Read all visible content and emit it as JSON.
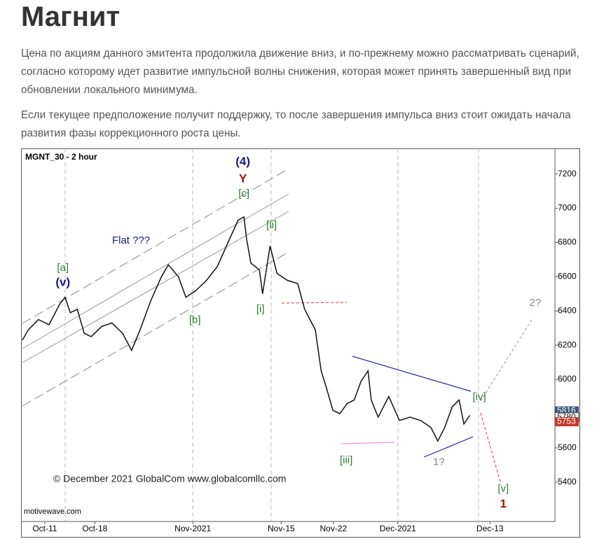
{
  "header": {
    "title": "Магнит"
  },
  "paragraphs": [
    "Цена по акциям данного эмитента продолжила движение вниз, и по-прежнему можно рассматривать сценарий, согласно которому идет развитие импульсной волны снижения, которая может принять завершенный вид при обновлении локального минимума.",
    "Если текущее предположение получит поддержку, то после завершения импульса вниз стоит ожидать начала развития фазы коррекционного роста цены."
  ],
  "chart_data": {
    "type": "line",
    "title": "MGNT_30  - 2 hour",
    "source": "motivewave.com",
    "copyright": "© December 2021 GlobalCom www.globalcomllc.com",
    "xlim": [
      0,
      100
    ],
    "xticks": [
      {
        "value": 4.2,
        "label": "Oct-11"
      },
      {
        "value": 13.6,
        "label": "Oct-18"
      },
      {
        "value": 32,
        "label": "Nov-2021"
      },
      {
        "value": 48.6,
        "label": "Nov-15"
      },
      {
        "value": 58.4,
        "label": "Nov-22"
      },
      {
        "value": 70.5,
        "label": "Dec-2021"
      },
      {
        "value": 87.8,
        "label": "Dec-13"
      }
    ],
    "ylim": [
      5170,
      7350
    ],
    "yticks": [
      5400,
      5600,
      5800,
      6000,
      6200,
      6400,
      6600,
      6800,
      7000,
      7200
    ],
    "series": [
      {
        "color": "#111111",
        "x": [
          0,
          1.1,
          3.0,
          5.0,
          7.0,
          8.0,
          9.0,
          10.3,
          11.6,
          12.9,
          14.9,
          16.8,
          18.8,
          20.5,
          22.1,
          24.1,
          26.1,
          27.4,
          29.3,
          30.7,
          32.6,
          34.6,
          36.6,
          38.6,
          40.5,
          41.6,
          42.1,
          42.9,
          44.5,
          45.1,
          46.5,
          47.8,
          49.7,
          51.7,
          53.0,
          55.0,
          56.1,
          57.0,
          58.3,
          59.6,
          61.0,
          62.3,
          63.6,
          64.9,
          65.5,
          66.8,
          68.8,
          70.8,
          72.8,
          74.8,
          76.7,
          78.0,
          79.3,
          80.7,
          82.0,
          82.9,
          84.0
        ],
        "values": [
          6230,
          6290,
          6350,
          6320,
          6440,
          6480,
          6390,
          6410,
          6270,
          6250,
          6310,
          6330,
          6270,
          6170,
          6290,
          6460,
          6600,
          6670,
          6600,
          6480,
          6520,
          6580,
          6660,
          6800,
          6930,
          6950,
          6820,
          6680,
          6640,
          6500,
          6780,
          6620,
          6580,
          6560,
          6410,
          6290,
          6050,
          5960,
          5820,
          5800,
          5860,
          5880,
          5990,
          6050,
          5880,
          5780,
          5900,
          5760,
          5780,
          5760,
          5720,
          5640,
          5720,
          5840,
          5880,
          5740,
          5790
        ]
      }
    ],
    "price_tags": [
      {
        "value": 5816,
        "color": "#3b5577"
      },
      {
        "value": 5780,
        "color": "#ffffff"
      },
      {
        "value": 5753,
        "color": "#c0392b"
      }
    ],
    "annotations": [
      {
        "text": "(4)",
        "x": 41.4,
        "y": 7270,
        "color": "#1a1a80"
      },
      {
        "text": "Y",
        "x": 41.4,
        "y": 7170,
        "color": "#a01010"
      },
      {
        "text": "[c]",
        "x": 41.6,
        "y": 7085,
        "color": "#2e7d32"
      },
      {
        "text": "[ii]",
        "x": 46.8,
        "y": 6900,
        "color": "#2e7d32"
      },
      {
        "text": "Flat ???",
        "x": 20.4,
        "y": 6810,
        "color": "#1a1a80"
      },
      {
        "text": "[a]",
        "x": 7.6,
        "y": 6650,
        "color": "#2e7d32"
      },
      {
        "text": "(v)",
        "x": 7.6,
        "y": 6565,
        "color": "#1a1a80"
      },
      {
        "text": "[b]",
        "x": 32.4,
        "y": 6345,
        "color": "#2e7d32"
      },
      {
        "text": "[i]",
        "x": 44.7,
        "y": 6410,
        "color": "#2e7d32"
      },
      {
        "text": "[iii]",
        "x": 60.8,
        "y": 5525,
        "color": "#2e7d32"
      },
      {
        "text": "1?",
        "x": 78.2,
        "y": 5515,
        "color": "#888888"
      },
      {
        "text": "[iv]",
        "x": 85.8,
        "y": 5895,
        "color": "#2e7d32"
      },
      {
        "text": "2?",
        "x": 96.3,
        "y": 6445,
        "color": "#888888"
      },
      {
        "text": "[v]",
        "x": 90.3,
        "y": 5360,
        "color": "#2e7d32"
      },
      {
        "text": "1",
        "x": 90.3,
        "y": 5270,
        "color": "#a01010"
      }
    ]
  }
}
